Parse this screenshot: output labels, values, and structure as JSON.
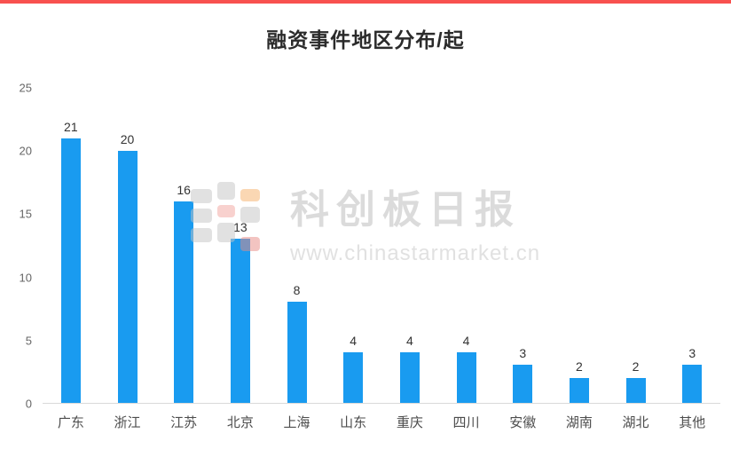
{
  "colors": {
    "accent_top": "#f8514f",
    "bar": "#199bf0",
    "value_label": "#333333",
    "axis_label": "#666666",
    "baseline": "#d9d9d9"
  },
  "chart_data": {
    "type": "bar",
    "title": "融资事件地区分布/起",
    "categories": [
      "广东",
      "浙江",
      "江苏",
      "北京",
      "上海",
      "山东",
      "重庆",
      "四川",
      "安徽",
      "湖南",
      "湖北",
      "其他"
    ],
    "values": [
      21,
      20,
      16,
      13,
      8,
      4,
      4,
      4,
      3,
      2,
      2,
      3
    ],
    "xlabel": "",
    "ylabel": "",
    "ylim": [
      0,
      25
    ],
    "yticks": [
      0,
      5,
      10,
      15,
      20,
      25
    ],
    "grid": false,
    "legend": false
  },
  "watermark": {
    "brand": "科创板日报",
    "url": "www.chinastarmarket.cn"
  }
}
